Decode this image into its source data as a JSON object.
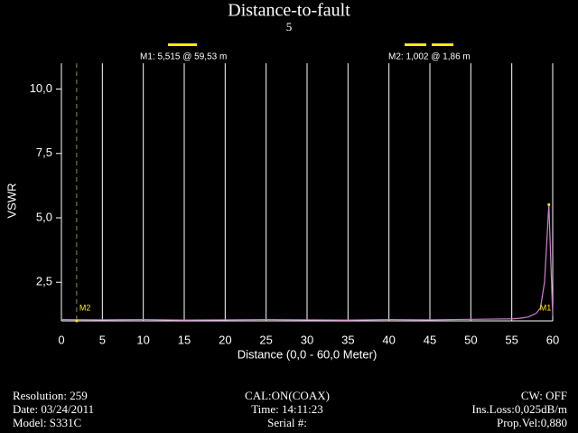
{
  "chart_data": {
    "type": "line",
    "title": "Distance-to-fault",
    "subtitle": "5",
    "x_label": "Distance (0,0 - 60,0 Meter)",
    "y_label": "VSWR",
    "x": [
      0,
      5,
      10,
      15,
      20,
      25,
      30,
      35,
      40,
      45,
      50,
      55,
      56,
      57,
      58,
      58.5,
      59,
      59.3,
      59.53,
      59.8,
      60
    ],
    "series": [
      {
        "name": "VSWR",
        "color": "#d080d0",
        "values": [
          1.05,
          1.04,
          1.05,
          1.03,
          1.04,
          1.05,
          1.04,
          1.03,
          1.05,
          1.04,
          1.06,
          1.08,
          1.1,
          1.15,
          1.3,
          1.5,
          2.5,
          4.2,
          5.515,
          3.0,
          1.2
        ]
      }
    ],
    "xlim": [
      0,
      60
    ],
    "xticks": [
      0,
      5,
      10,
      15,
      20,
      25,
      30,
      35,
      40,
      45,
      50,
      55,
      60
    ],
    "ylim": [
      1,
      11
    ],
    "yticks": [
      {
        "value": 2.5,
        "label": "2,5"
      },
      {
        "value": 5,
        "label": "5,0"
      },
      {
        "value": 7.5,
        "label": "7,5"
      },
      {
        "value": 10,
        "label": "10,0"
      }
    ],
    "grid": true,
    "markers": [
      {
        "label": "M1",
        "x": 59.53,
        "value": 5.515,
        "text": "M1: 5,515  @ 59,53 m"
      },
      {
        "label": "M2",
        "x": 1.86,
        "value": 1.002,
        "text": "M2: 1,002  @ 1,86 m"
      }
    ],
    "info": {
      "left": [
        "Resolution:  259",
        "Date: 03/24/2011",
        "Model: S331C"
      ],
      "center": [
        "CAL:ON(COAX)",
        "Time: 14:11:23",
        "Serial #:"
      ],
      "right": [
        "CW: OFF",
        "Ins.Loss:0,025dB/m",
        "Prop.Vel:0,880"
      ]
    }
  }
}
